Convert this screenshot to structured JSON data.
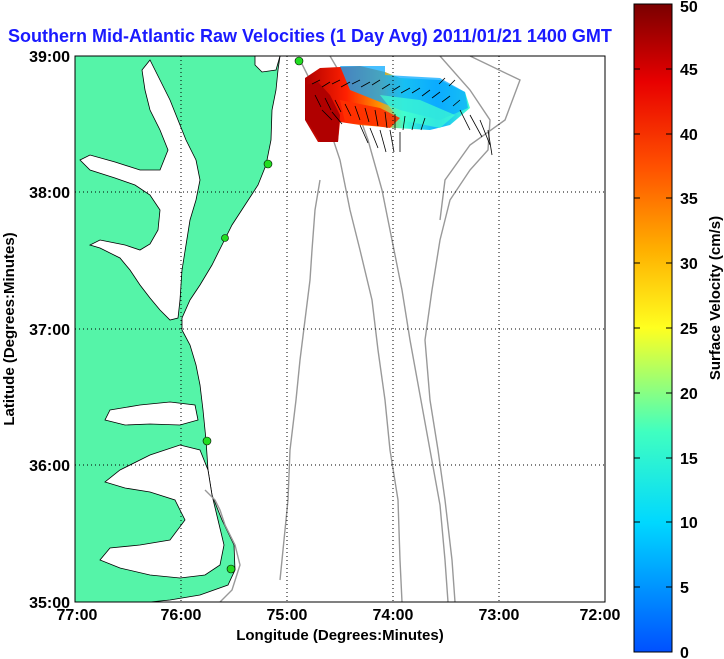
{
  "title": "Southern Mid-Atlantic Raw Velocities (1 Day Avg) 2011/01/21 1400 GMT",
  "axes": {
    "xlabel": "Longitude (Degrees:Minutes)",
    "ylabel": "Latitude (Degrees:Minutes)",
    "xticks": [
      "77:00",
      "76:00",
      "75:00",
      "74:00",
      "73:00",
      "72:00"
    ],
    "yticks": [
      "39:00",
      "38:00",
      "37:00",
      "36:00",
      "35:00"
    ]
  },
  "colorbar": {
    "label": "Surface Velocity (cm/s)",
    "ticks": [
      "0",
      "5",
      "10",
      "15",
      "20",
      "25",
      "30",
      "35",
      "40",
      "45",
      "50"
    ],
    "min": 0,
    "max": 50
  },
  "colors": {
    "land": "#55f4a8",
    "water": "#ffffff",
    "title": "#1a1aff",
    "bathymetry": "#999999",
    "coast": "#000000",
    "station": "#22dd22"
  },
  "map": {
    "lon_range": [
      -77,
      -72
    ],
    "lat_range": [
      35,
      39
    ],
    "grid": "dotted"
  }
}
